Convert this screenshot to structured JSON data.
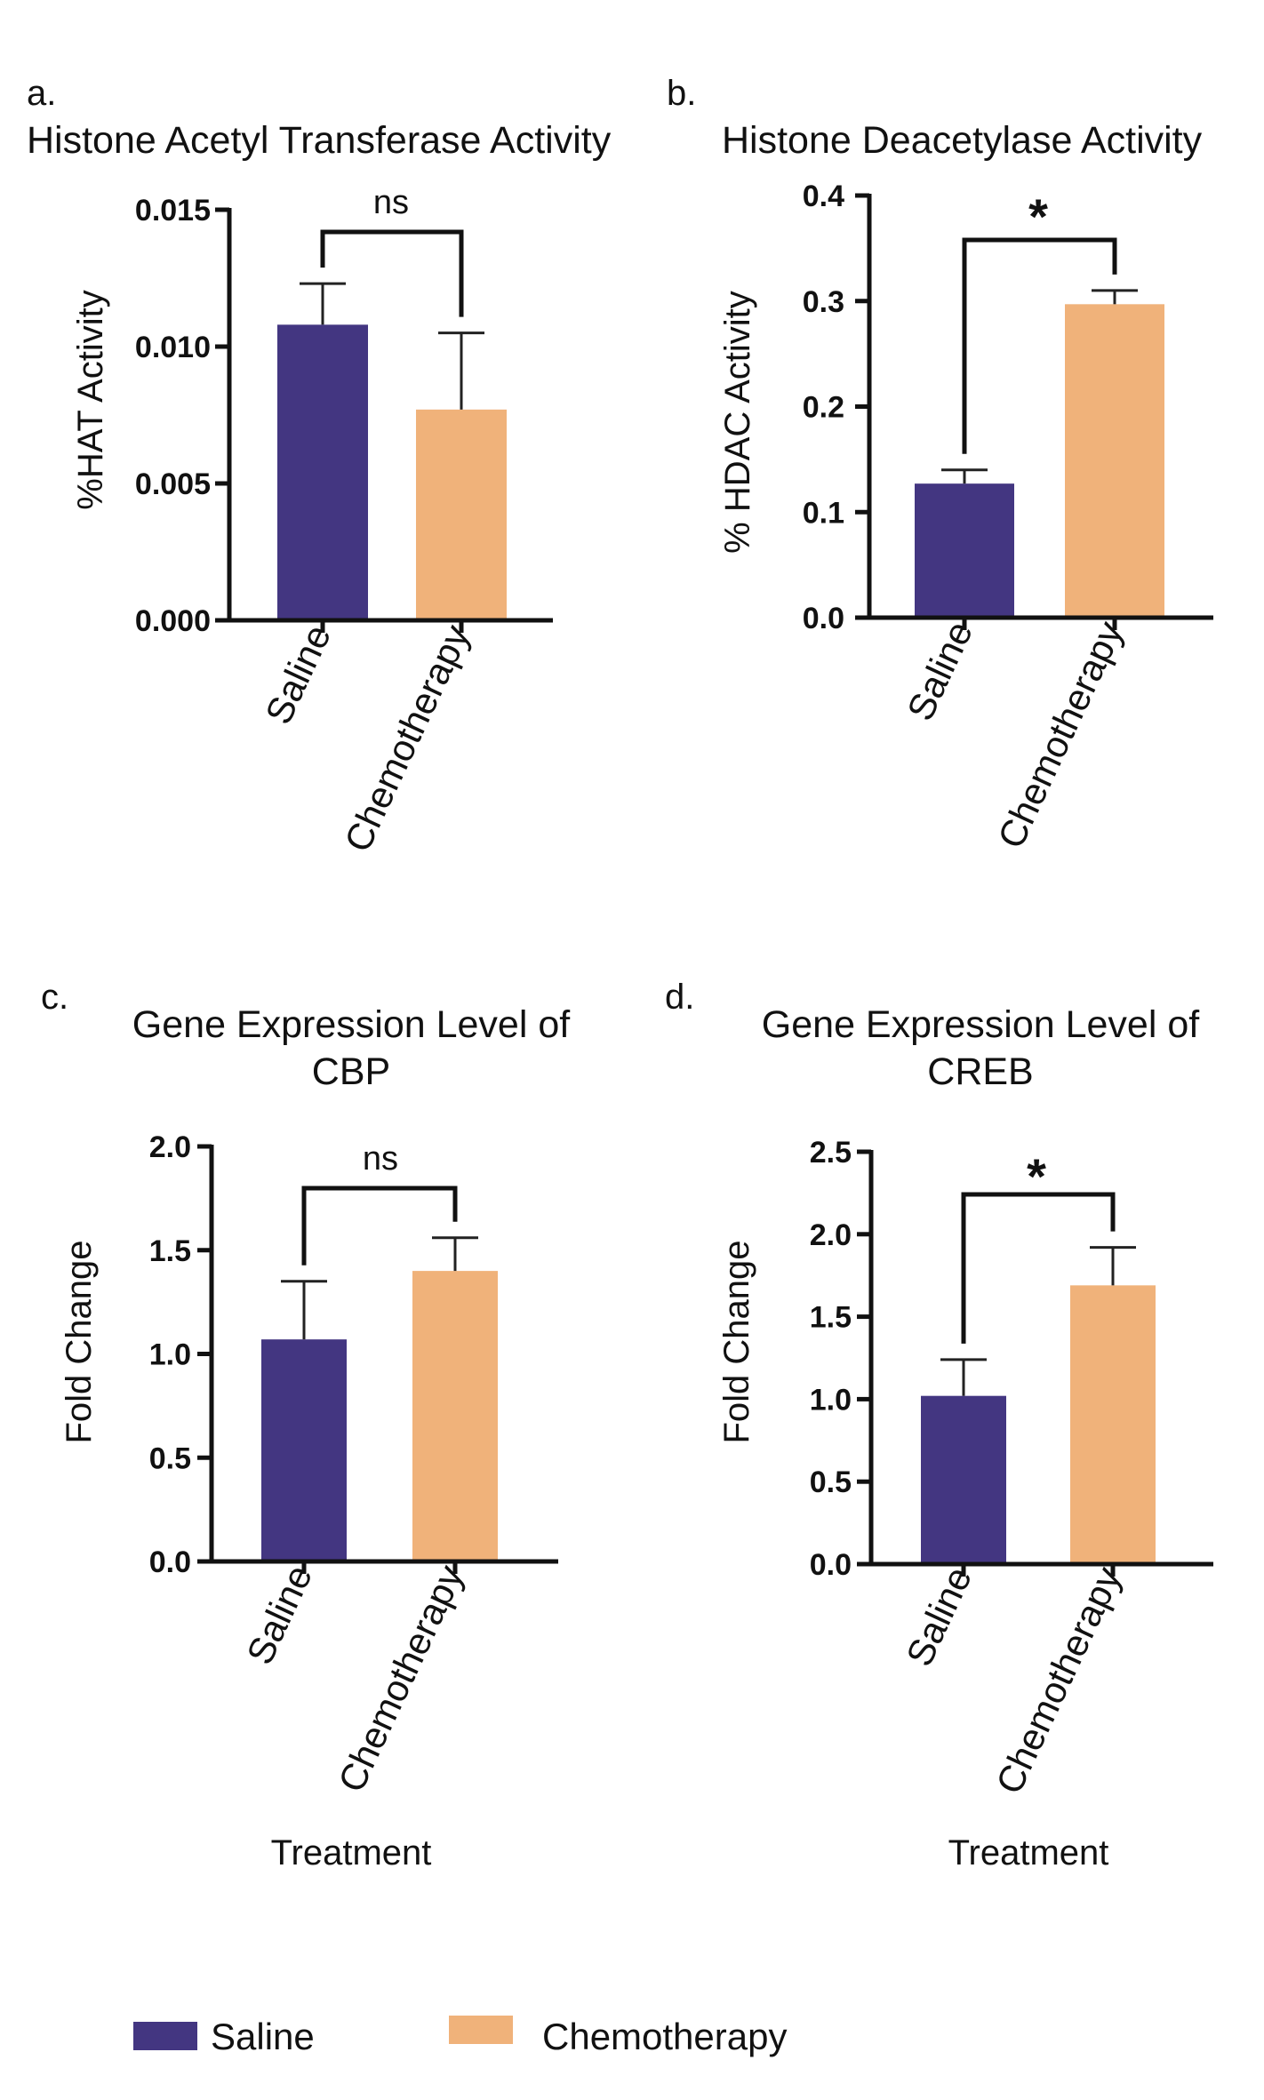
{
  "legend": {
    "items": [
      {
        "label": "Saline",
        "color": "#433681"
      },
      {
        "label": "Chemotherapy",
        "color": "#F0B27A"
      }
    ]
  },
  "chart_data": [
    {
      "panel": "a.",
      "type": "bar",
      "title": [
        "Histone Acetyl Transferase Activity"
      ],
      "ylabel": "%HAT Activity",
      "xlabel": "",
      "categories": [
        "Saline",
        "Chemotherapy"
      ],
      "values": [
        0.0108,
        0.0077
      ],
      "errors": [
        0.0015,
        0.0028
      ],
      "colors": [
        "#433681",
        "#F0B27A"
      ],
      "ylim": [
        0,
        0.015
      ],
      "ticks": [
        "0.000",
        "0.005",
        "0.010",
        "0.015"
      ],
      "tick_values": [
        0,
        0.005,
        0.01,
        0.015
      ],
      "significance": "ns"
    },
    {
      "panel": "b.",
      "type": "bar",
      "title": [
        "Histone Deacetylase Activity"
      ],
      "ylabel": "% HDAC Activity",
      "xlabel": "",
      "categories": [
        "Saline",
        "Chemotherapy"
      ],
      "values": [
        0.127,
        0.297
      ],
      "errors": [
        0.013,
        0.013
      ],
      "colors": [
        "#433681",
        "#F0B27A"
      ],
      "ylim": [
        0,
        0.4
      ],
      "ticks": [
        "0.0",
        "0.1",
        "0.2",
        "0.3",
        "0.4"
      ],
      "tick_values": [
        0,
        0.1,
        0.2,
        0.3,
        0.4
      ],
      "significance": "*"
    },
    {
      "panel": "c.",
      "type": "bar",
      "title": [
        "Gene Expression Level of",
        "CBP"
      ],
      "ylabel": "Fold Change",
      "xlabel": "Treatment",
      "categories": [
        "Saline",
        "Chemotherapy"
      ],
      "values": [
        1.07,
        1.4
      ],
      "errors": [
        0.28,
        0.16
      ],
      "colors": [
        "#433681",
        "#F0B27A"
      ],
      "ylim": [
        0,
        2.0
      ],
      "ticks": [
        "0.0",
        "0.5",
        "1.0",
        "1.5",
        "2.0"
      ],
      "tick_values": [
        0,
        0.5,
        1.0,
        1.5,
        2.0
      ],
      "significance": "ns"
    },
    {
      "panel": "d.",
      "type": "bar",
      "title": [
        "Gene Expression Level of",
        "CREB"
      ],
      "ylabel": "Fold Change",
      "xlabel": "Treatment",
      "categories": [
        "Saline",
        "Chemotherapy"
      ],
      "values": [
        1.02,
        1.69
      ],
      "errors": [
        0.22,
        0.23
      ],
      "colors": [
        "#433681",
        "#F0B27A"
      ],
      "ylim": [
        0,
        2.5
      ],
      "ticks": [
        "0.0",
        "0.5",
        "1.0",
        "1.5",
        "2.0",
        "2.5"
      ],
      "tick_values": [
        0,
        0.5,
        1.0,
        1.5,
        2.0,
        2.5
      ],
      "significance": "*"
    }
  ]
}
